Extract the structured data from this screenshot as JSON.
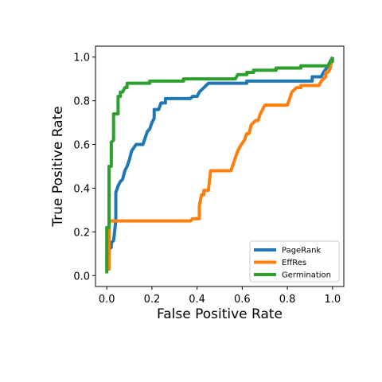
{
  "chart_data": {
    "type": "line",
    "title": "",
    "xlabel": "False Positive Rate",
    "ylabel": "True Positive Rate",
    "xlim": [
      -0.05,
      1.05
    ],
    "ylim": [
      -0.05,
      1.05
    ],
    "xticks": [
      "0.0",
      "0.2",
      "0.4",
      "0.6",
      "0.8",
      "1.0"
    ],
    "yticks": [
      "0.0",
      "0.2",
      "0.4",
      "0.6",
      "0.8",
      "1.0"
    ],
    "grid": false,
    "legend_position": "lower right",
    "series": [
      {
        "name": "PageRank",
        "color": "#1f77b4",
        "points": [
          [
            0.0,
            0.03
          ],
          [
            0.01,
            0.03
          ],
          [
            0.01,
            0.12
          ],
          [
            0.02,
            0.13
          ],
          [
            0.02,
            0.15
          ],
          [
            0.03,
            0.16
          ],
          [
            0.04,
            0.25
          ],
          [
            0.04,
            0.38
          ],
          [
            0.05,
            0.41
          ],
          [
            0.06,
            0.43
          ],
          [
            0.07,
            0.44
          ],
          [
            0.08,
            0.48
          ],
          [
            0.09,
            0.5
          ],
          [
            0.1,
            0.53
          ],
          [
            0.11,
            0.57
          ],
          [
            0.13,
            0.6
          ],
          [
            0.16,
            0.6
          ],
          [
            0.17,
            0.63
          ],
          [
            0.18,
            0.66
          ],
          [
            0.19,
            0.67
          ],
          [
            0.2,
            0.7
          ],
          [
            0.21,
            0.72
          ],
          [
            0.21,
            0.76
          ],
          [
            0.23,
            0.76
          ],
          [
            0.24,
            0.79
          ],
          [
            0.26,
            0.79
          ],
          [
            0.26,
            0.81
          ],
          [
            0.37,
            0.81
          ],
          [
            0.38,
            0.82
          ],
          [
            0.4,
            0.82
          ],
          [
            0.41,
            0.84
          ],
          [
            0.43,
            0.86
          ],
          [
            0.45,
            0.88
          ],
          [
            0.62,
            0.88
          ],
          [
            0.62,
            0.89
          ],
          [
            0.91,
            0.89
          ],
          [
            0.91,
            0.91
          ],
          [
            0.95,
            0.91
          ],
          [
            0.96,
            0.93
          ],
          [
            0.98,
            0.96
          ],
          [
            1.0,
            1.0
          ]
        ]
      },
      {
        "name": "EffRes",
        "color": "#ff7f0e",
        "points": [
          [
            0.0,
            0.03
          ],
          [
            0.01,
            0.03
          ],
          [
            0.01,
            0.25
          ],
          [
            0.37,
            0.25
          ],
          [
            0.38,
            0.26
          ],
          [
            0.41,
            0.26
          ],
          [
            0.41,
            0.32
          ],
          [
            0.42,
            0.37
          ],
          [
            0.43,
            0.37
          ],
          [
            0.43,
            0.39
          ],
          [
            0.45,
            0.39
          ],
          [
            0.46,
            0.48
          ],
          [
            0.55,
            0.48
          ],
          [
            0.56,
            0.51
          ],
          [
            0.57,
            0.54
          ],
          [
            0.58,
            0.57
          ],
          [
            0.59,
            0.59
          ],
          [
            0.61,
            0.62
          ],
          [
            0.62,
            0.65
          ],
          [
            0.63,
            0.65
          ],
          [
            0.64,
            0.69
          ],
          [
            0.66,
            0.71
          ],
          [
            0.67,
            0.71
          ],
          [
            0.68,
            0.74
          ],
          [
            0.69,
            0.76
          ],
          [
            0.7,
            0.78
          ],
          [
            0.8,
            0.78
          ],
          [
            0.81,
            0.81
          ],
          [
            0.82,
            0.84
          ],
          [
            0.83,
            0.85
          ],
          [
            0.84,
            0.86
          ],
          [
            0.86,
            0.86
          ],
          [
            0.86,
            0.87
          ],
          [
            0.94,
            0.87
          ],
          [
            0.95,
            0.89
          ],
          [
            0.97,
            0.91
          ],
          [
            0.97,
            0.93
          ],
          [
            0.98,
            0.93
          ],
          [
            0.99,
            0.95
          ],
          [
            1.0,
            1.0
          ]
        ]
      },
      {
        "name": "Germination",
        "color": "#2ca02c",
        "points": [
          [
            0.0,
            0.01
          ],
          [
            0.0,
            0.22
          ],
          [
            0.01,
            0.22
          ],
          [
            0.01,
            0.5
          ],
          [
            0.02,
            0.5
          ],
          [
            0.02,
            0.61
          ],
          [
            0.03,
            0.62
          ],
          [
            0.03,
            0.74
          ],
          [
            0.05,
            0.74
          ],
          [
            0.05,
            0.82
          ],
          [
            0.06,
            0.82
          ],
          [
            0.06,
            0.84
          ],
          [
            0.07,
            0.84
          ],
          [
            0.08,
            0.86
          ],
          [
            0.09,
            0.86
          ],
          [
            0.09,
            0.88
          ],
          [
            0.19,
            0.88
          ],
          [
            0.19,
            0.89
          ],
          [
            0.34,
            0.89
          ],
          [
            0.34,
            0.9
          ],
          [
            0.57,
            0.9
          ],
          [
            0.58,
            0.92
          ],
          [
            0.62,
            0.92
          ],
          [
            0.62,
            0.93
          ],
          [
            0.65,
            0.93
          ],
          [
            0.65,
            0.94
          ],
          [
            0.75,
            0.94
          ],
          [
            0.75,
            0.95
          ],
          [
            0.86,
            0.95
          ],
          [
            0.86,
            0.96
          ],
          [
            0.98,
            0.96
          ],
          [
            0.99,
            0.98
          ],
          [
            1.0,
            0.98
          ],
          [
            1.0,
            1.0
          ]
        ]
      }
    ]
  }
}
